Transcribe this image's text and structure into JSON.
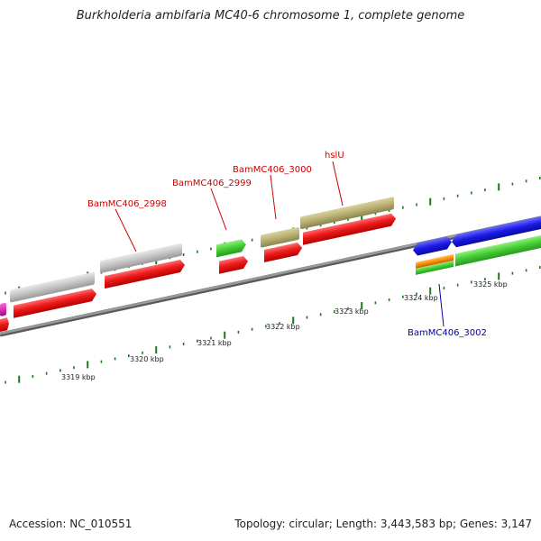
{
  "title": "Burkholderia ambifaria MC40-6 chromosome 1, complete genome",
  "accession_text": "Accession: NC_010551",
  "summary_text": "Topology: circular; Length: 3,443,583 bp; Genes: 3,147",
  "ruler": {
    "labels": [
      "3319 kbp",
      "3320 kbp",
      "3321 kbp",
      "3322 kbp",
      "3323 kbp",
      "3324 kbp",
      "3325 kbp"
    ]
  },
  "gene_labels": [
    {
      "id": "g2998",
      "text": "BamMC406_2998",
      "color": "#cc0000"
    },
    {
      "id": "g2999",
      "text": "BamMC406_2999",
      "color": "#cc0000"
    },
    {
      "id": "g3000",
      "text": "BamMC406_3000",
      "color": "#cc0000"
    },
    {
      "id": "hslU",
      "text": "hslU",
      "color": "#cc0000"
    },
    {
      "id": "g3002",
      "text": "BamMC406_3002",
      "color": "#0000aa"
    }
  ],
  "colors": {
    "backbone": "#808080",
    "tick": "#1a7a1a",
    "cds": "#ee1c1c",
    "gene_forward": "#c0c0c0",
    "gene_green": "#44cc33",
    "gene_olive": "#b8b070",
    "gene_blue": "#1a1ae6",
    "gene_orange": "#ff8c00",
    "gene_magenta": "#dd22aa"
  }
}
